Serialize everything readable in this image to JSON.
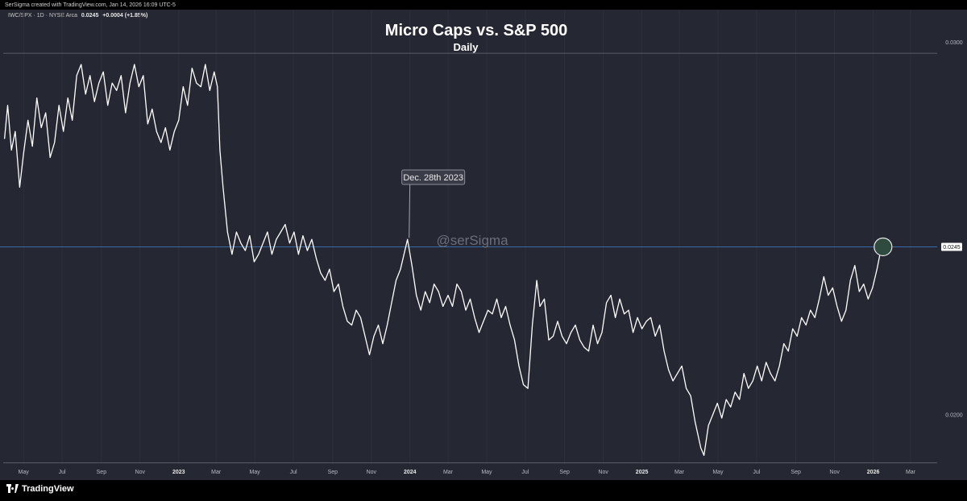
{
  "attribution": "SerSigma created with TradingView.com, Jan 14, 2026 16:09 UTC-5",
  "symbol": {
    "ticker": "IWC/SPX · 1D · NYSE Arca",
    "last": "0.0245",
    "change": "+0.0004 (+1.85%)"
  },
  "footer": {
    "brand": "TradingView",
    "logo_icon": "tradingview-logo-icon"
  },
  "chart_data": {
    "type": "line",
    "title": "Micro Caps vs. S&P 500",
    "subtitle": "Daily",
    "watermark": "@serSigma",
    "annotation": {
      "text": "Dec. 28th 2023",
      "x": "2023-12-28"
    },
    "current_marker": {
      "x": "2026-01-14",
      "y": 0.0245,
      "label": "0.0245"
    },
    "x_ticks": [
      {
        "label": "May",
        "x": "2022-05-01"
      },
      {
        "label": "Jul",
        "x": "2022-07-01"
      },
      {
        "label": "Sep",
        "x": "2022-09-01"
      },
      {
        "label": "Nov",
        "x": "2022-11-01"
      },
      {
        "label": "2023",
        "x": "2023-01-01",
        "bold": true
      },
      {
        "label": "Mar",
        "x": "2023-03-01"
      },
      {
        "label": "May",
        "x": "2023-05-01"
      },
      {
        "label": "Jul",
        "x": "2023-07-01"
      },
      {
        "label": "Sep",
        "x": "2023-09-01"
      },
      {
        "label": "Nov",
        "x": "2023-11-01"
      },
      {
        "label": "2024",
        "x": "2024-01-01",
        "bold": true
      },
      {
        "label": "Mar",
        "x": "2024-03-01"
      },
      {
        "label": "May",
        "x": "2024-05-01"
      },
      {
        "label": "Jul",
        "x": "2024-07-01"
      },
      {
        "label": "Sep",
        "x": "2024-09-01"
      },
      {
        "label": "Nov",
        "x": "2024-11-01"
      },
      {
        "label": "2025",
        "x": "2025-01-01",
        "bold": true
      },
      {
        "label": "Mar",
        "x": "2025-03-01"
      },
      {
        "label": "May",
        "x": "2025-05-01"
      },
      {
        "label": "Jul",
        "x": "2025-07-01"
      },
      {
        "label": "Sep",
        "x": "2025-09-01"
      },
      {
        "label": "Nov",
        "x": "2025-11-01"
      },
      {
        "label": "2026",
        "x": "2026-01-01",
        "bold": true
      },
      {
        "label": "Mar",
        "x": "2026-03-01"
      }
    ],
    "y_ticks": [
      {
        "label": "0.0300",
        "y": 0.03
      },
      {
        "label": "0.0200",
        "y": 0.02
      }
    ],
    "xlim": [
      "2022-03-30",
      "2026-04-12"
    ],
    "ylim": [
      0.01867,
      0.03087
    ],
    "reference_lines": [
      0.0297,
      0.0187
    ],
    "colors": {
      "line": "#ffffff",
      "panel": "#252733",
      "price_line": "#3a6aa8",
      "marker": "#2f4a3f"
    },
    "series": [
      {
        "points": [
          [
            "2022-04-01",
            0.0274
          ],
          [
            "2022-04-06",
            0.0283
          ],
          [
            "2022-04-12",
            0.0271
          ],
          [
            "2022-04-18",
            0.0276
          ],
          [
            "2022-04-25",
            0.0261
          ],
          [
            "2022-05-01",
            0.027
          ],
          [
            "2022-05-08",
            0.0279
          ],
          [
            "2022-05-15",
            0.0272
          ],
          [
            "2022-05-22",
            0.0285
          ],
          [
            "2022-05-29",
            0.0277
          ],
          [
            "2022-06-05",
            0.0281
          ],
          [
            "2022-06-12",
            0.0269
          ],
          [
            "2022-06-19",
            0.0273
          ],
          [
            "2022-06-26",
            0.0283
          ],
          [
            "2022-07-03",
            0.0276
          ],
          [
            "2022-07-10",
            0.0285
          ],
          [
            "2022-07-17",
            0.0279
          ],
          [
            "2022-07-24",
            0.0291
          ],
          [
            "2022-07-31",
            0.0294
          ],
          [
            "2022-08-07",
            0.0286
          ],
          [
            "2022-08-14",
            0.0291
          ],
          [
            "2022-08-21",
            0.0284
          ],
          [
            "2022-08-28",
            0.0289
          ],
          [
            "2022-09-04",
            0.0292
          ],
          [
            "2022-09-11",
            0.0283
          ],
          [
            "2022-09-18",
            0.0289
          ],
          [
            "2022-09-25",
            0.0287
          ],
          [
            "2022-10-02",
            0.0291
          ],
          [
            "2022-10-09",
            0.0281
          ],
          [
            "2022-10-16",
            0.0289
          ],
          [
            "2022-10-23",
            0.0294
          ],
          [
            "2022-10-30",
            0.0288
          ],
          [
            "2022-11-06",
            0.0291
          ],
          [
            "2022-11-13",
            0.0278
          ],
          [
            "2022-11-20",
            0.0282
          ],
          [
            "2022-11-27",
            0.0276
          ],
          [
            "2022-12-04",
            0.0273
          ],
          [
            "2022-12-11",
            0.0277
          ],
          [
            "2022-12-18",
            0.0271
          ],
          [
            "2022-12-25",
            0.0276
          ],
          [
            "2023-01-01",
            0.0279
          ],
          [
            "2023-01-08",
            0.0288
          ],
          [
            "2023-01-15",
            0.0283
          ],
          [
            "2023-01-22",
            0.0293
          ],
          [
            "2023-01-29",
            0.0289
          ],
          [
            "2023-02-05",
            0.0288
          ],
          [
            "2023-02-12",
            0.0294
          ],
          [
            "2023-02-19",
            0.0287
          ],
          [
            "2023-02-26",
            0.0292
          ],
          [
            "2023-03-03",
            0.0288
          ],
          [
            "2023-03-07",
            0.0271
          ],
          [
            "2023-03-12",
            0.0261
          ],
          [
            "2023-03-19",
            0.0249
          ],
          [
            "2023-03-26",
            0.0243
          ],
          [
            "2023-04-02",
            0.0249
          ],
          [
            "2023-04-09",
            0.0246
          ],
          [
            "2023-04-16",
            0.0244
          ],
          [
            "2023-04-23",
            0.0248
          ],
          [
            "2023-04-30",
            0.0241
          ],
          [
            "2023-05-07",
            0.0243
          ],
          [
            "2023-05-14",
            0.0246
          ],
          [
            "2023-05-21",
            0.0249
          ],
          [
            "2023-05-28",
            0.0243
          ],
          [
            "2023-06-04",
            0.0247
          ],
          [
            "2023-06-11",
            0.0249
          ],
          [
            "2023-06-18",
            0.0251
          ],
          [
            "2023-06-25",
            0.0246
          ],
          [
            "2023-07-02",
            0.0249
          ],
          [
            "2023-07-09",
            0.0243
          ],
          [
            "2023-07-16",
            0.0248
          ],
          [
            "2023-07-23",
            0.0244
          ],
          [
            "2023-07-30",
            0.0247
          ],
          [
            "2023-08-06",
            0.0242
          ],
          [
            "2023-08-13",
            0.0238
          ],
          [
            "2023-08-20",
            0.0236
          ],
          [
            "2023-08-27",
            0.0239
          ],
          [
            "2023-09-03",
            0.0233
          ],
          [
            "2023-09-10",
            0.0235
          ],
          [
            "2023-09-17",
            0.0229
          ],
          [
            "2023-09-24",
            0.0225
          ],
          [
            "2023-10-01",
            0.0224
          ],
          [
            "2023-10-08",
            0.0228
          ],
          [
            "2023-10-15",
            0.0226
          ],
          [
            "2023-10-22",
            0.0221
          ],
          [
            "2023-10-29",
            0.0216
          ],
          [
            "2023-11-05",
            0.0221
          ],
          [
            "2023-11-12",
            0.0224
          ],
          [
            "2023-11-19",
            0.0219
          ],
          [
            "2023-11-26",
            0.0224
          ],
          [
            "2023-12-03",
            0.023
          ],
          [
            "2023-12-10",
            0.0236
          ],
          [
            "2023-12-17",
            0.0239
          ],
          [
            "2023-12-28",
            0.0247
          ],
          [
            "2024-01-04",
            0.024
          ],
          [
            "2024-01-11",
            0.0232
          ],
          [
            "2024-01-18",
            0.0228
          ],
          [
            "2024-01-25",
            0.0233
          ],
          [
            "2024-02-01",
            0.023
          ],
          [
            "2024-02-08",
            0.0235
          ],
          [
            "2024-02-15",
            0.0233
          ],
          [
            "2024-02-22",
            0.0229
          ],
          [
            "2024-03-01",
            0.0232
          ],
          [
            "2024-03-08",
            0.0229
          ],
          [
            "2024-03-15",
            0.0235
          ],
          [
            "2024-03-22",
            0.0233
          ],
          [
            "2024-03-29",
            0.0228
          ],
          [
            "2024-04-05",
            0.0231
          ],
          [
            "2024-04-12",
            0.0226
          ],
          [
            "2024-04-19",
            0.0222
          ],
          [
            "2024-04-26",
            0.0225
          ],
          [
            "2024-05-03",
            0.0228
          ],
          [
            "2024-05-10",
            0.0227
          ],
          [
            "2024-05-17",
            0.0231
          ],
          [
            "2024-05-24",
            0.0226
          ],
          [
            "2024-05-31",
            0.0229
          ],
          [
            "2024-06-07",
            0.0224
          ],
          [
            "2024-06-14",
            0.022
          ],
          [
            "2024-06-21",
            0.0213
          ],
          [
            "2024-06-28",
            0.0208
          ],
          [
            "2024-07-05",
            0.0207
          ],
          [
            "2024-07-12",
            0.0224
          ],
          [
            "2024-07-19",
            0.0236
          ],
          [
            "2024-07-24",
            0.0229
          ],
          [
            "2024-07-31",
            0.0231
          ],
          [
            "2024-08-07",
            0.022
          ],
          [
            "2024-08-14",
            0.0221
          ],
          [
            "2024-08-21",
            0.0225
          ],
          [
            "2024-08-28",
            0.0221
          ],
          [
            "2024-09-04",
            0.0219
          ],
          [
            "2024-09-11",
            0.0222
          ],
          [
            "2024-09-18",
            0.0224
          ],
          [
            "2024-09-25",
            0.022
          ],
          [
            "2024-10-02",
            0.0218
          ],
          [
            "2024-10-09",
            0.0217
          ],
          [
            "2024-10-16",
            0.0224
          ],
          [
            "2024-10-23",
            0.0219
          ],
          [
            "2024-10-30",
            0.0222
          ],
          [
            "2024-11-06",
            0.023
          ],
          [
            "2024-11-13",
            0.0232
          ],
          [
            "2024-11-20",
            0.0226
          ],
          [
            "2024-11-27",
            0.0231
          ],
          [
            "2024-12-04",
            0.0227
          ],
          [
            "2024-12-11",
            0.0228
          ],
          [
            "2024-12-18",
            0.0222
          ],
          [
            "2024-12-25",
            0.0226
          ],
          [
            "2025-01-01",
            0.0223
          ],
          [
            "2025-01-08",
            0.0225
          ],
          [
            "2025-01-15",
            0.0226
          ],
          [
            "2025-01-22",
            0.0221
          ],
          [
            "2025-01-29",
            0.0224
          ],
          [
            "2025-02-05",
            0.0217
          ],
          [
            "2025-02-12",
            0.0212
          ],
          [
            "2025-02-19",
            0.0209
          ],
          [
            "2025-02-26",
            0.0211
          ],
          [
            "2025-03-05",
            0.0213
          ],
          [
            "2025-03-12",
            0.0207
          ],
          [
            "2025-03-19",
            0.0205
          ],
          [
            "2025-03-26",
            0.0198
          ],
          [
            "2025-04-04",
            0.0191
          ],
          [
            "2025-04-09",
            0.0189
          ],
          [
            "2025-04-16",
            0.0197
          ],
          [
            "2025-04-23",
            0.02
          ],
          [
            "2025-04-30",
            0.0203
          ],
          [
            "2025-05-07",
            0.0199
          ],
          [
            "2025-05-14",
            0.0204
          ],
          [
            "2025-05-21",
            0.0202
          ],
          [
            "2025-05-28",
            0.0206
          ],
          [
            "2025-06-04",
            0.0204
          ],
          [
            "2025-06-11",
            0.0211
          ],
          [
            "2025-06-18",
            0.0207
          ],
          [
            "2025-06-25",
            0.0209
          ],
          [
            "2025-07-02",
            0.0213
          ],
          [
            "2025-07-09",
            0.0209
          ],
          [
            "2025-07-16",
            0.0214
          ],
          [
            "2025-07-23",
            0.0211
          ],
          [
            "2025-07-30",
            0.0209
          ],
          [
            "2025-08-06",
            0.0213
          ],
          [
            "2025-08-13",
            0.0219
          ],
          [
            "2025-08-20",
            0.0217
          ],
          [
            "2025-08-27",
            0.0223
          ],
          [
            "2025-09-03",
            0.0221
          ],
          [
            "2025-09-10",
            0.0226
          ],
          [
            "2025-09-17",
            0.0224
          ],
          [
            "2025-09-24",
            0.0228
          ],
          [
            "2025-10-01",
            0.0226
          ],
          [
            "2025-10-08",
            0.0231
          ],
          [
            "2025-10-15",
            0.0237
          ],
          [
            "2025-10-22",
            0.0232
          ],
          [
            "2025-10-29",
            0.0234
          ],
          [
            "2025-11-05",
            0.0229
          ],
          [
            "2025-11-12",
            0.0225
          ],
          [
            "2025-11-19",
            0.0228
          ],
          [
            "2025-11-26",
            0.0236
          ],
          [
            "2025-12-03",
            0.024
          ],
          [
            "2025-12-10",
            0.0233
          ],
          [
            "2025-12-17",
            0.0235
          ],
          [
            "2025-12-24",
            0.0231
          ],
          [
            "2025-12-31",
            0.0234
          ],
          [
            "2026-01-07",
            0.0239
          ],
          [
            "2026-01-14",
            0.0245
          ]
        ]
      }
    ]
  }
}
